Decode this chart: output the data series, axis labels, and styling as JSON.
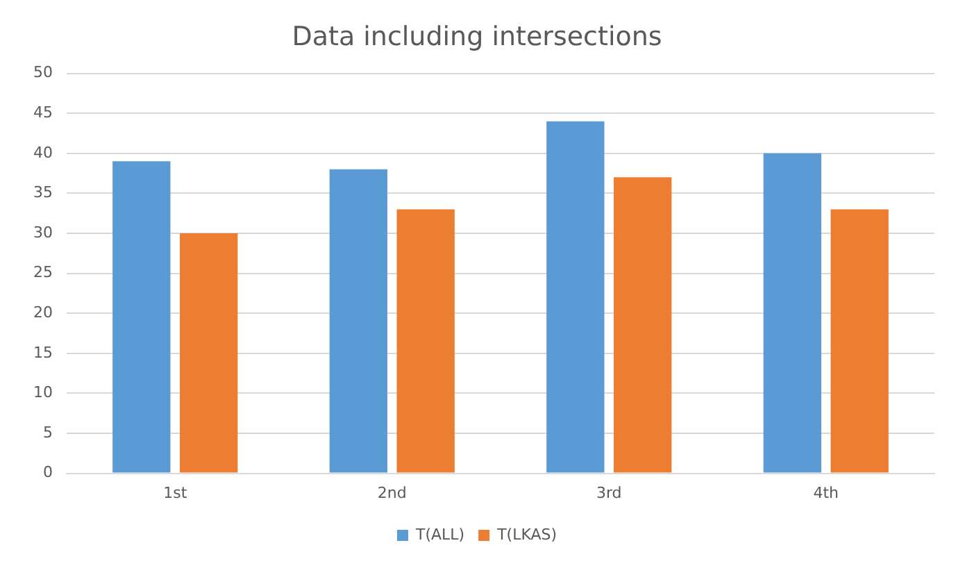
{
  "chart_data": {
    "type": "bar",
    "title": "Data including intersections",
    "categories": [
      "1st",
      "2nd",
      "3rd",
      "4th"
    ],
    "series": [
      {
        "name": "T(ALL)",
        "color": "#5b9bd5",
        "values": [
          39,
          38,
          44,
          40
        ]
      },
      {
        "name": "T(LKAS)",
        "color": "#ed7d31",
        "values": [
          30,
          33,
          37,
          33
        ]
      }
    ],
    "ylim": [
      0,
      50
    ],
    "yticks": [
      0,
      5,
      10,
      15,
      20,
      25,
      30,
      35,
      40,
      45,
      50
    ],
    "grid": "y",
    "legend": "bottom"
  }
}
